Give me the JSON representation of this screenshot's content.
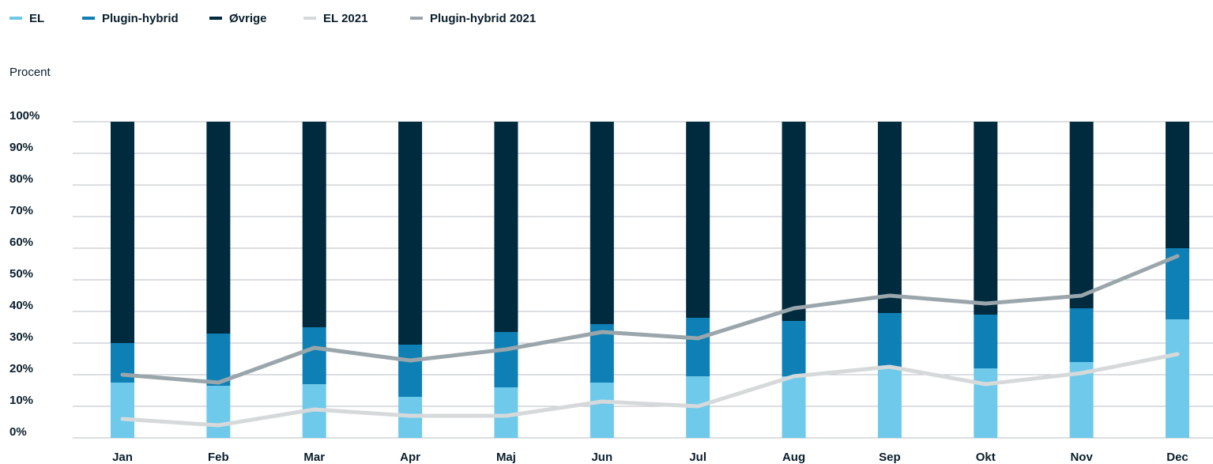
{
  "chart_data": {
    "type": "bar",
    "stacked": true,
    "ylabel": "Procent",
    "ylim": [
      0,
      100
    ],
    "yticks": [
      "0%",
      "10%",
      "20%",
      "30%",
      "40%",
      "50%",
      "60%",
      "70%",
      "80%",
      "90%",
      "100%"
    ],
    "grid": true,
    "legend_position": "top-left",
    "categories": [
      "Jan",
      "Feb",
      "Mar",
      "Apr",
      "Maj",
      "Jun",
      "Jul",
      "Aug",
      "Sep",
      "Okt",
      "Nov",
      "Dec"
    ],
    "series": [
      {
        "name": "EL",
        "kind": "bar",
        "color": "#6ec9ea",
        "values": [
          17.5,
          16.5,
          17,
          13,
          16,
          17.5,
          19.5,
          19.5,
          22.5,
          22,
          24,
          37.5
        ]
      },
      {
        "name": "Plugin-hybrid",
        "kind": "bar",
        "color": "#0f80b5",
        "values": [
          12.5,
          16.5,
          18,
          16.5,
          17.5,
          18.5,
          18.5,
          17.5,
          17,
          17,
          17,
          22.5
        ]
      },
      {
        "name": "Øvrige",
        "kind": "bar",
        "color": "#002a3e",
        "values": [
          70,
          67,
          65,
          70.5,
          66.5,
          64,
          62,
          63,
          60.5,
          61,
          59,
          40
        ]
      },
      {
        "name": "EL 2021",
        "kind": "line",
        "color": "#d6d9da",
        "values": [
          6,
          4,
          9,
          7,
          7,
          11.5,
          10,
          19.5,
          22.5,
          17,
          20.5,
          26.5
        ]
      },
      {
        "name": "Plugin-hybrid 2021",
        "kind": "line",
        "color": "#9aa6ab",
        "values": [
          20,
          17.5,
          28.5,
          24.5,
          28,
          33.5,
          31.5,
          41,
          45,
          42.5,
          45,
          57.5
        ]
      }
    ]
  }
}
